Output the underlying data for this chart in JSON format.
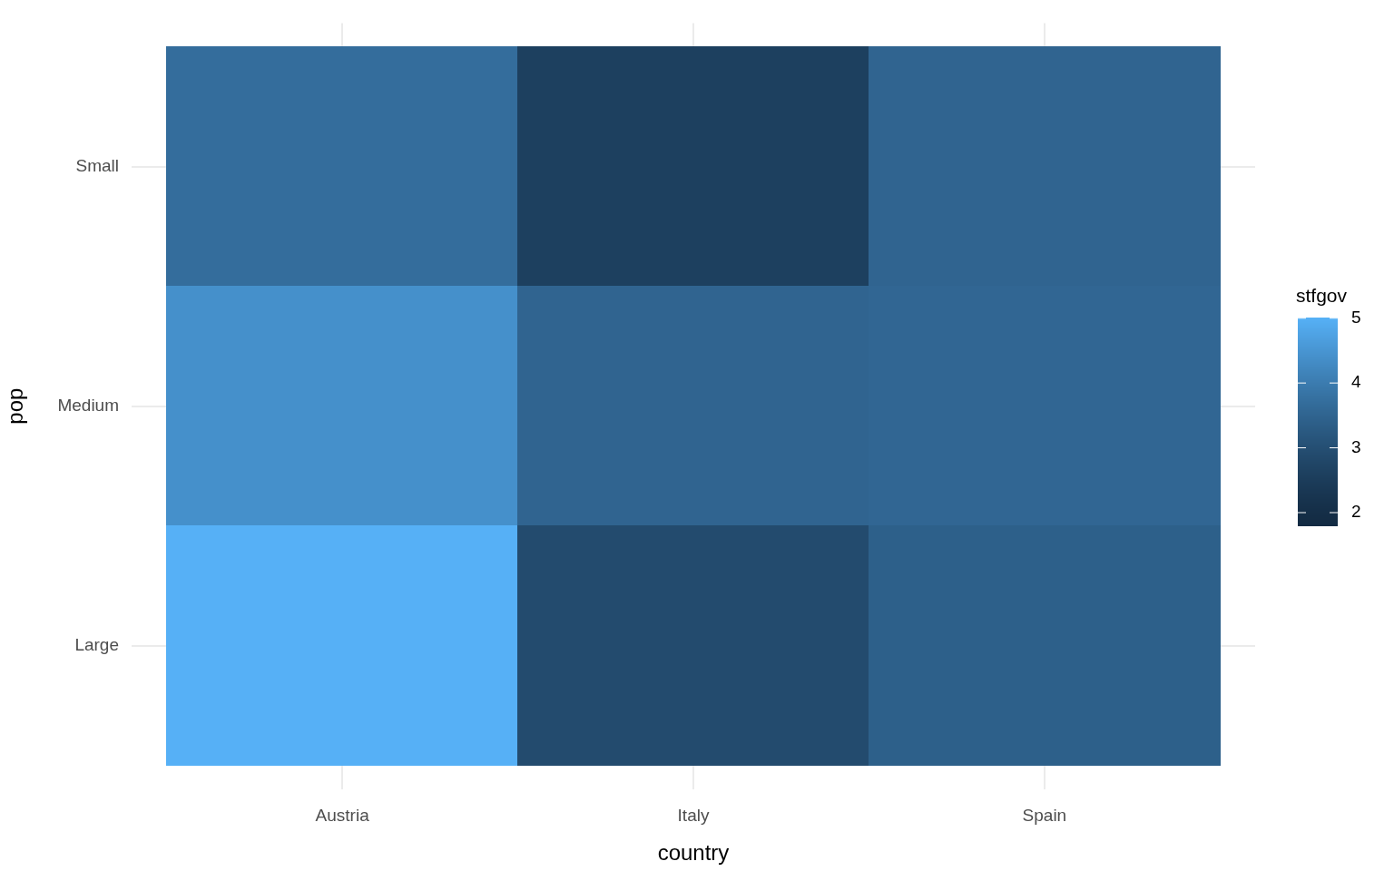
{
  "chart_data": {
    "type": "heatmap",
    "xlabel": "country",
    "ylabel": "pop",
    "clabel": "stfgov",
    "categories": [
      "Austria",
      "Italy",
      "Spain"
    ],
    "y_categories": [
      "Small",
      "Medium",
      "Large"
    ],
    "cells": [
      [
        3.7,
        2.6,
        3.5
      ],
      [
        4.4,
        3.5,
        3.55
      ],
      [
        5.0,
        2.9,
        3.4
      ]
    ],
    "clim": [
      1.79,
      5.01
    ],
    "cticks": [
      2,
      3,
      4,
      5
    ],
    "grid": true
  }
}
